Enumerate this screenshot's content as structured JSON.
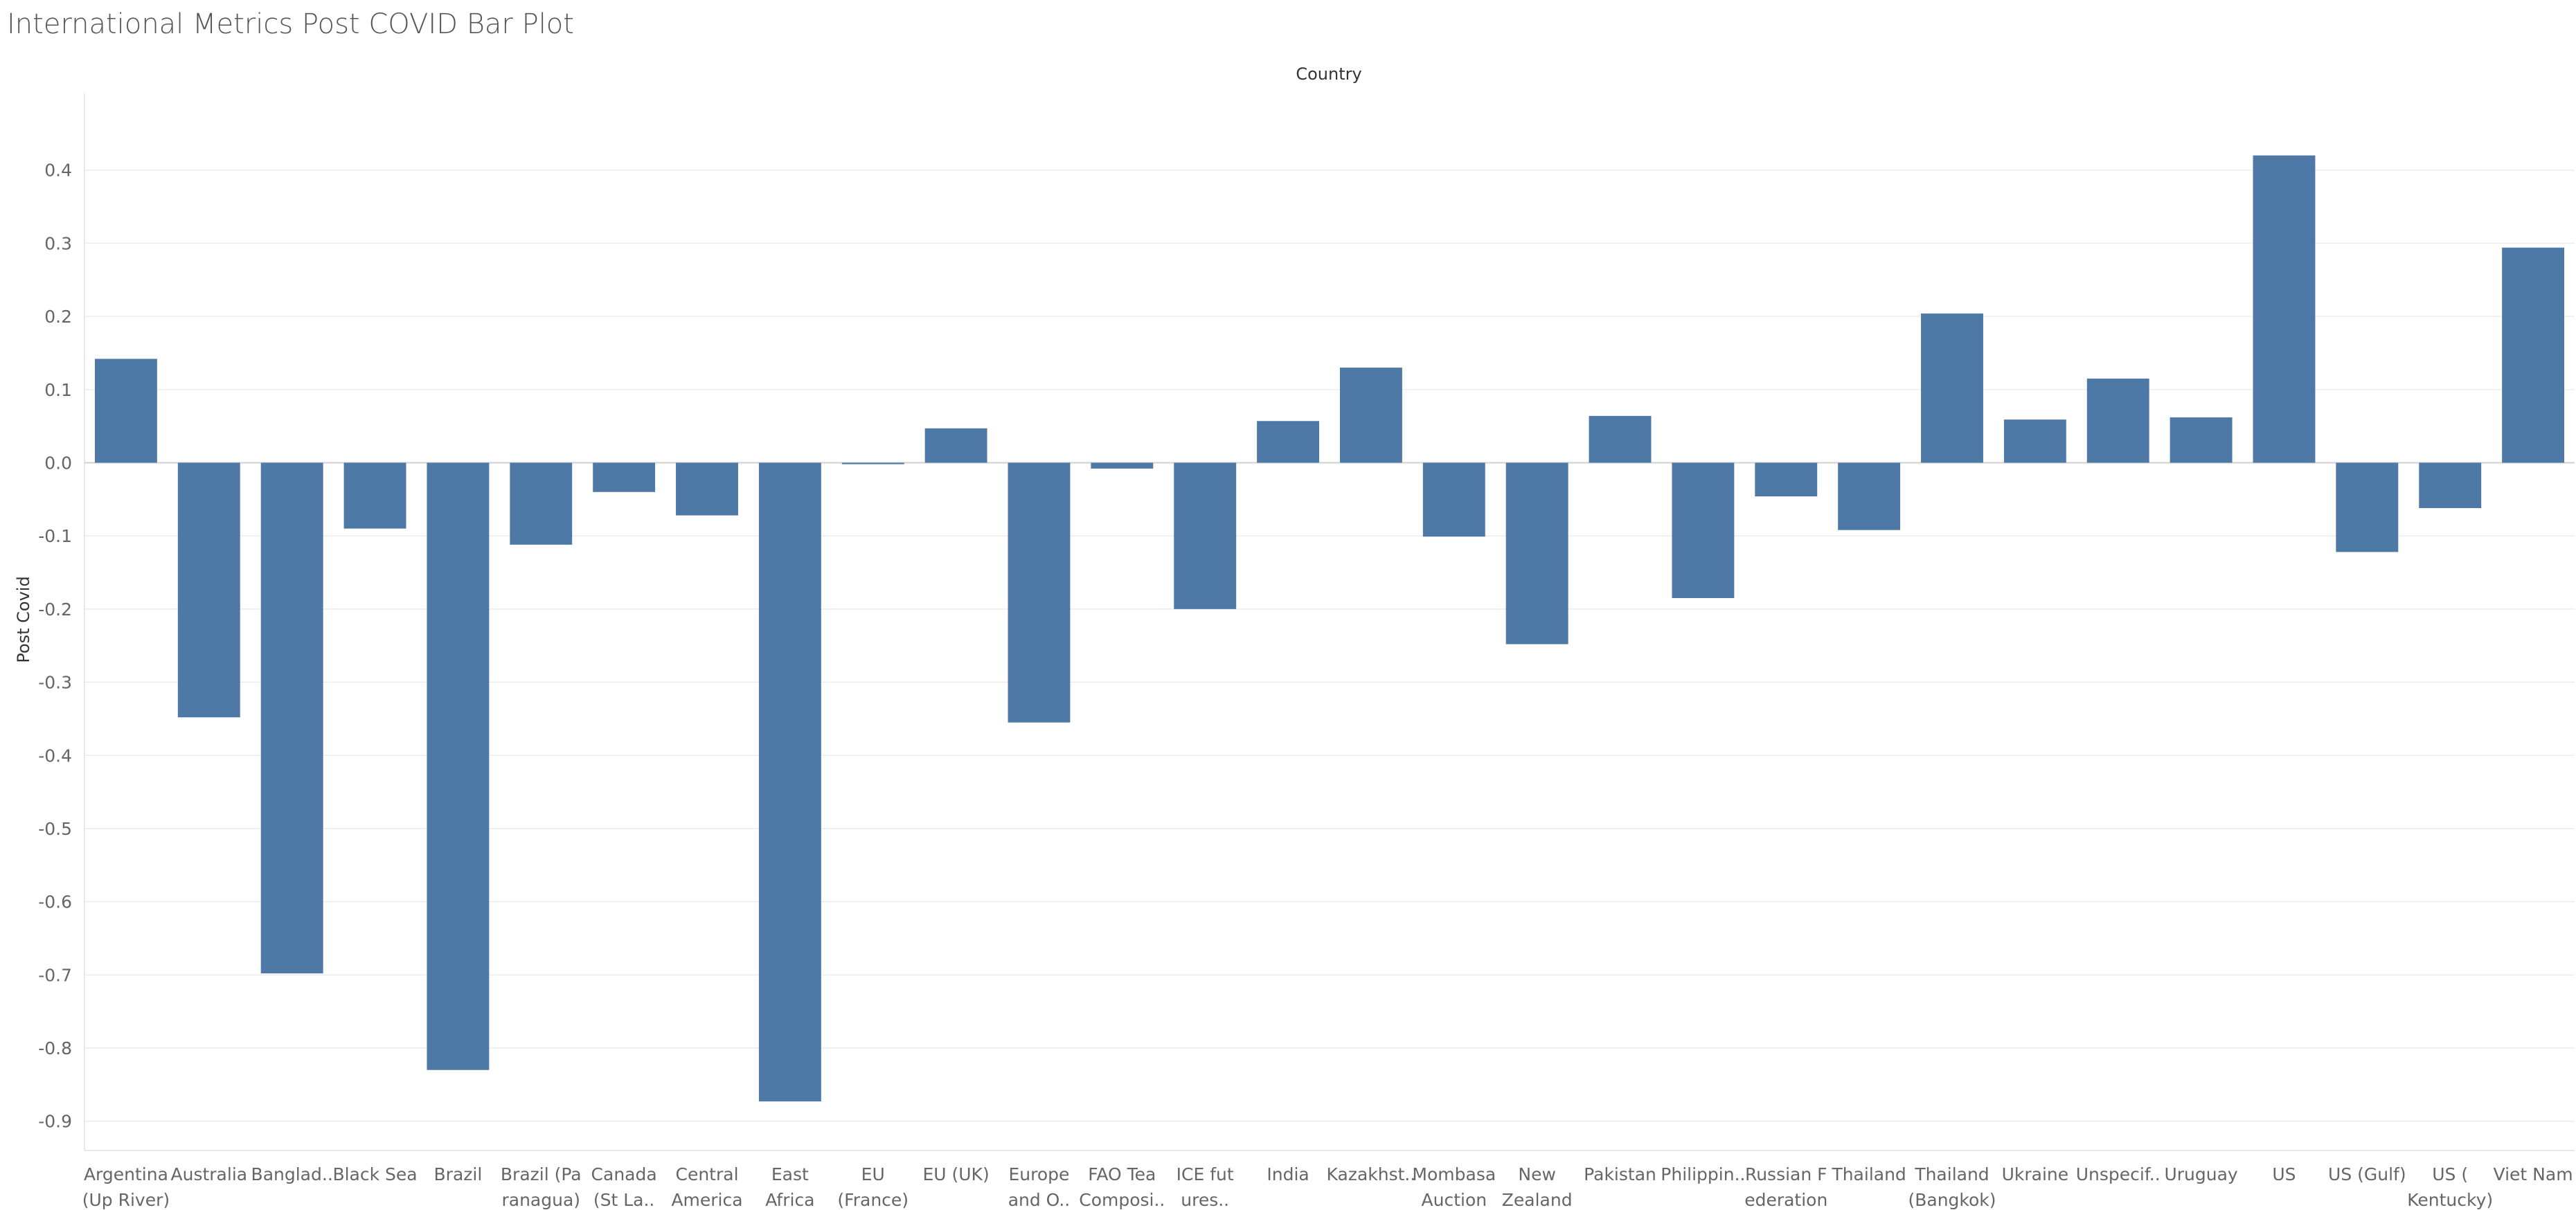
{
  "title": "International Metrics Post COVID Bar Plot",
  "chart_data": {
    "type": "bar",
    "title": "International Metrics Post COVID Bar Plot",
    "column_header": "Country",
    "xlabel": "",
    "ylabel": "Post Covid",
    "ylim": [
      -0.94,
      0.5
    ],
    "yticks": [
      0.4,
      0.3,
      0.2,
      0.1,
      0.0,
      -0.1,
      -0.2,
      -0.3,
      -0.4,
      -0.5,
      -0.6,
      -0.7,
      -0.8,
      -0.9
    ],
    "ytick_labels": [
      "0.4",
      "0.3",
      "0.2",
      "0.1",
      "0.0",
      "-0.1",
      "-0.2",
      "-0.3",
      "-0.4",
      "-0.5",
      "-0.6",
      "-0.7",
      "-0.8",
      "-0.9"
    ],
    "grid": true,
    "bar_color": "#4e79a7",
    "categories": [
      [
        "Argentina",
        "(Up River)"
      ],
      [
        "Australia"
      ],
      [
        "Banglad.."
      ],
      [
        "Black Sea"
      ],
      [
        "Brazil"
      ],
      [
        "Brazil (Pa",
        "ranagua)"
      ],
      [
        "Canada",
        "(St La.."
      ],
      [
        "Central",
        "America"
      ],
      [
        "East",
        "Africa"
      ],
      [
        "EU",
        "(France)"
      ],
      [
        "EU (UK)"
      ],
      [
        "Europe",
        "and O.."
      ],
      [
        "FAO Tea",
        "Composi.."
      ],
      [
        "ICE fut",
        "ures.."
      ],
      [
        "India"
      ],
      [
        "Kazakhst.."
      ],
      [
        "Mombasa",
        "Auction"
      ],
      [
        "New",
        "Zealand"
      ],
      [
        "Pakistan"
      ],
      [
        "Philippin.."
      ],
      [
        "Russian F",
        "ederation"
      ],
      [
        "Thailand"
      ],
      [
        "Thailand",
        "(Bangkok)"
      ],
      [
        "Ukraine"
      ],
      [
        "Unspecif.."
      ],
      [
        "Uruguay"
      ],
      [
        "US"
      ],
      [
        "US (Gulf)"
      ],
      [
        "US (",
        "Kentucky)"
      ],
      [
        "Viet Nam"
      ]
    ],
    "values": [
      0.142,
      -0.348,
      -0.698,
      -0.09,
      -0.83,
      -0.112,
      -0.04,
      -0.072,
      -0.873,
      -0.002,
      0.047,
      -0.355,
      -0.008,
      -0.2,
      0.057,
      0.13,
      -0.101,
      -0.248,
      0.064,
      -0.185,
      -0.046,
      -0.092,
      0.204,
      0.059,
      0.115,
      0.062,
      0.42,
      -0.122,
      -0.062,
      0.294
    ]
  }
}
